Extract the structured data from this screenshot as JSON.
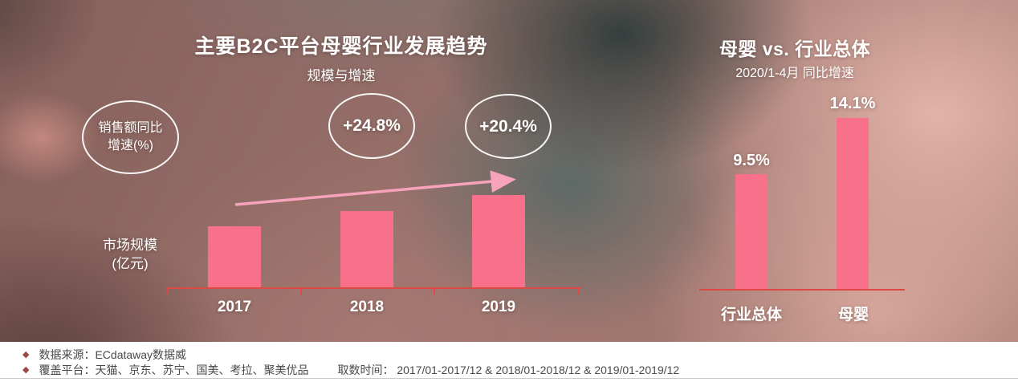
{
  "colors": {
    "bar_pink": "#f9708a",
    "axis_red": "#dd4a45",
    "arrow_pink": "#f7a3bb",
    "bullet_maroon": "#9a4a44",
    "footer_text": "#4a4a4a",
    "chart_text": "#ffffff",
    "footer_background": "#ffffff"
  },
  "chart_data": [
    {
      "type": "bar",
      "title": "主要B2C平台母婴行业发展趋势",
      "subtitle": "规模与增速",
      "categories": [
        "2017",
        "2018",
        "2019"
      ],
      "values": [
        100,
        124.8,
        150.2
      ],
      "values_note": "柱高按比例估读(2017=100)，图中未标注具体数值",
      "growth_labels": [
        "+24.8%",
        "+20.4%"
      ],
      "annotation_oval": {
        "line1": "销售额同比",
        "line2": "增速(%)"
      },
      "ylabel": "市场规模(亿元)",
      "ylabel_lines": {
        "line1": "市场规模",
        "line2": "(亿元)"
      },
      "xlabel": "",
      "grid": false,
      "legend": null,
      "bar_color": "#f9708a",
      "trend_arrow": "upward"
    },
    {
      "type": "bar",
      "title": "母婴 vs. 行业总体",
      "subtitle": "2020/1-4月 同比增速",
      "categories": [
        "行业总体",
        "母婴"
      ],
      "values": [
        9.5,
        14.1
      ],
      "unit": "%",
      "value_labels": [
        "9.5%",
        "14.1%"
      ],
      "grid": false,
      "legend": null,
      "bar_color": "#f9708a"
    }
  ],
  "footer": {
    "bullet": "◆",
    "source": "数据来源：ECdataway数据威",
    "coverage": "覆盖平台：天猫、京东、苏宁、国美、考拉、聚美优品",
    "period": "取数时间： 2017/01-2017/12 & 2018/01-2018/12 & 2019/01-2019/12"
  }
}
